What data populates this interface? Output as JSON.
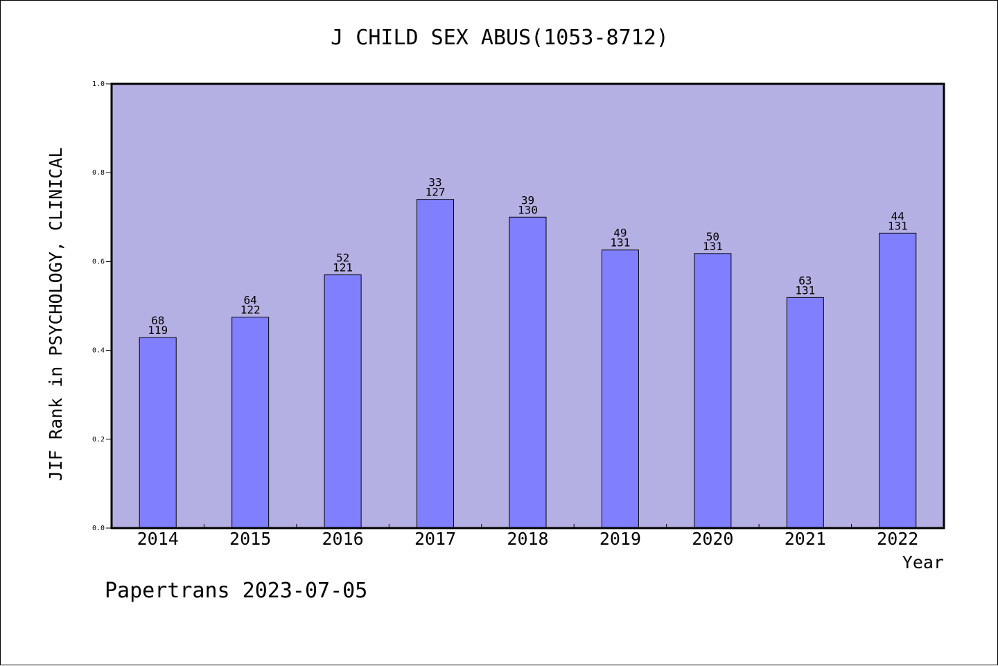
{
  "title": "J CHILD SEX ABUS(1053-8712)",
  "footer": "Papertrans 2023-07-05",
  "colors": {
    "plot_bg": "#b5b0e3",
    "bar": "#8080ff",
    "axis": "#000000"
  },
  "chart_data": {
    "type": "bar",
    "title": "J CHILD SEX ABUS(1053-8712)",
    "xlabel": "Year",
    "ylabel": "JIF Rank in PSYCHOLOGY, CLINICAL",
    "ylim": [
      0,
      1
    ],
    "yticks": [
      "0.0",
      "0.2",
      "0.4",
      "0.6",
      "0.8",
      "1.0"
    ],
    "categories": [
      "2014",
      "2015",
      "2016",
      "2017",
      "2018",
      "2019",
      "2020",
      "2021",
      "2022"
    ],
    "values": [
      0.429,
      0.475,
      0.57,
      0.74,
      0.7,
      0.626,
      0.618,
      0.519,
      0.664
    ],
    "rank": [
      "68",
      "64",
      "52",
      "33",
      "39",
      "49",
      "50",
      "63",
      "44"
    ],
    "total": [
      "119",
      "122",
      "121",
      "127",
      "130",
      "131",
      "131",
      "131",
      "131"
    ],
    "grid": false,
    "legend": "none"
  }
}
